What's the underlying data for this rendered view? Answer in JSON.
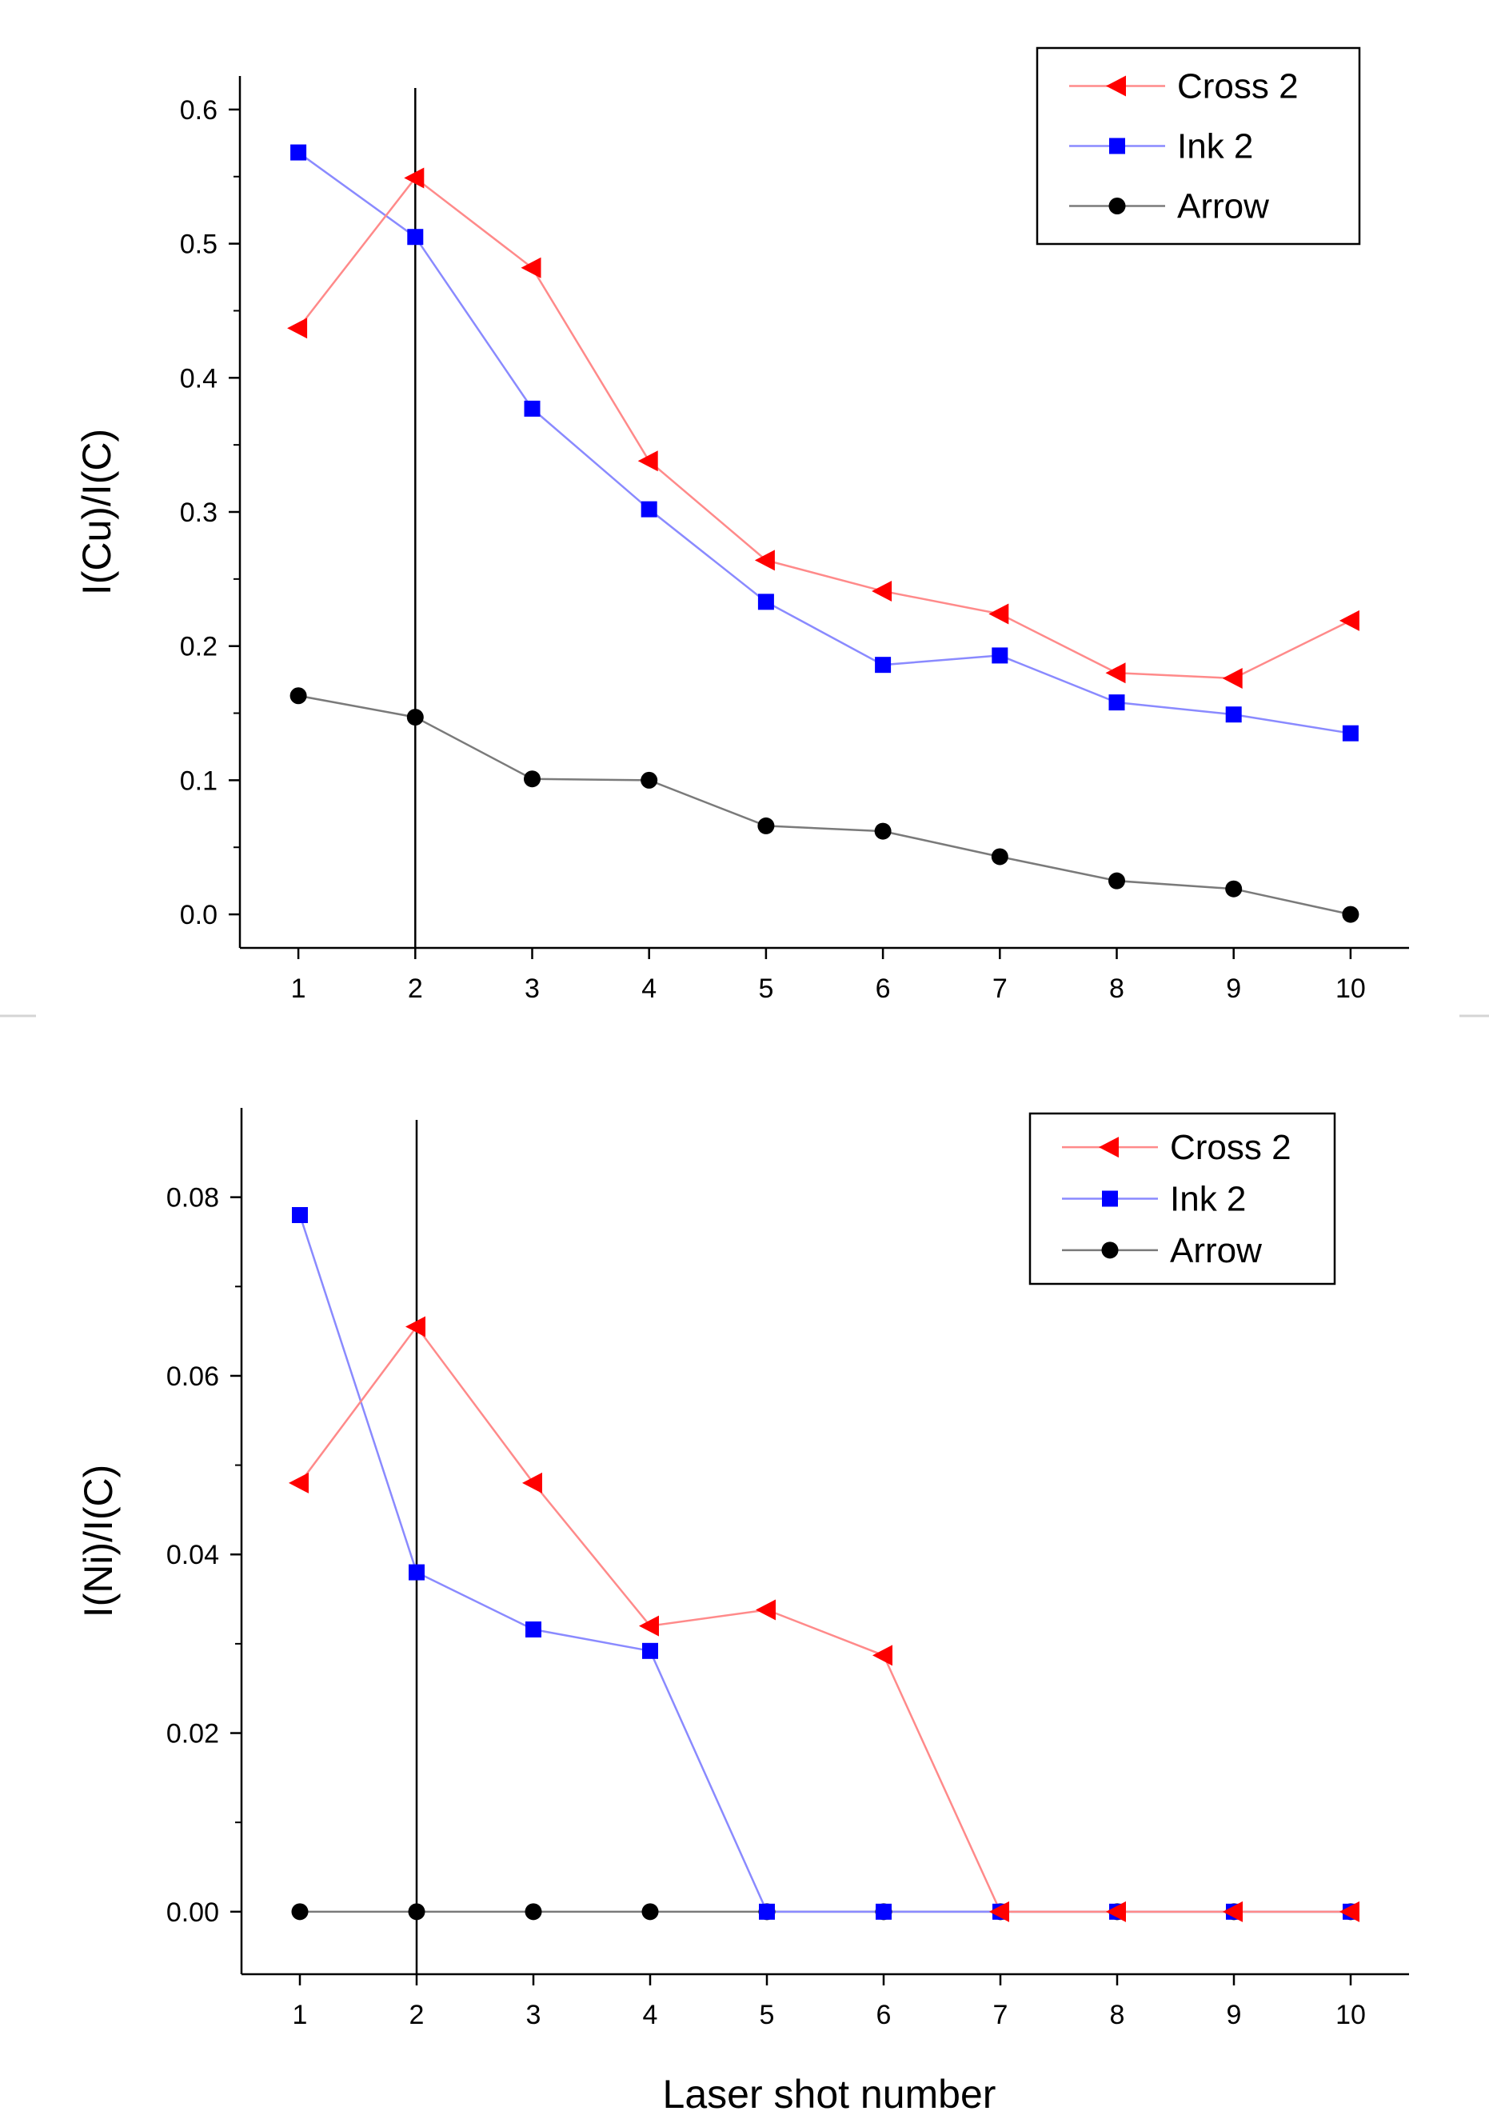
{
  "colors": {
    "cross": "#ff0000",
    "cross_line": "#ff8a8a",
    "ink": "#0000ff",
    "ink_line": "#8a8aff",
    "arrow": "#000000",
    "arrow_line": "#7a7a7a",
    "axis": "#000000"
  },
  "chart_data": [
    {
      "type": "line",
      "ylabel": "I(Cu)/I(C)",
      "xlabel": "",
      "x": [
        1,
        2,
        3,
        4,
        5,
        6,
        7,
        8,
        9,
        10
      ],
      "x_tick_labels": [
        "1",
        "2",
        "3",
        "4",
        "5",
        "6",
        "7",
        "8",
        "9",
        "10"
      ],
      "y_ticks": [
        0.0,
        0.1,
        0.2,
        0.3,
        0.4,
        0.5,
        0.6
      ],
      "y_tick_labels": [
        "0.0",
        "0.1",
        "0.2",
        "0.3",
        "0.4",
        "0.5",
        "0.6"
      ],
      "xlim": [
        0.5,
        10.5
      ],
      "ylim": [
        -0.025,
        0.625
      ],
      "vertical_line_at_x": 2,
      "legend_position": "top-right",
      "series": [
        {
          "name": "Cross 2",
          "marker": "triangle-left",
          "values": [
            0.437,
            0.549,
            0.482,
            0.338,
            0.264,
            0.241,
            0.224,
            0.18,
            0.176,
            0.219
          ]
        },
        {
          "name": "Ink 2",
          "marker": "square",
          "values": [
            0.568,
            0.505,
            0.377,
            0.302,
            0.233,
            0.186,
            0.193,
            0.158,
            0.149,
            0.135
          ]
        },
        {
          "name": "Arrow",
          "marker": "circle",
          "values": [
            0.163,
            0.147,
            0.101,
            0.1,
            0.066,
            0.062,
            0.043,
            0.025,
            0.019,
            0.0
          ]
        }
      ]
    },
    {
      "type": "line",
      "ylabel": "I(Ni)/I(C)",
      "xlabel": "Laser shot number",
      "x": [
        1,
        2,
        3,
        4,
        5,
        6,
        7,
        8,
        9,
        10
      ],
      "x_tick_labels": [
        "1",
        "2",
        "3",
        "4",
        "5",
        "6",
        "7",
        "8",
        "9",
        "10"
      ],
      "y_ticks": [
        0.0,
        0.02,
        0.04,
        0.06,
        0.08
      ],
      "y_tick_labels": [
        "0.00",
        "0.02",
        "0.04",
        "0.06",
        "0.08"
      ],
      "xlim": [
        0.5,
        10.5
      ],
      "ylim": [
        -0.007,
        0.09
      ],
      "vertical_line_at_x": 2,
      "legend_position": "top-right",
      "series": [
        {
          "name": "Cross 2",
          "marker": "triangle-left",
          "values": [
            0.048,
            0.0655,
            0.048,
            0.032,
            0.0338,
            0.0287,
            0.0,
            0.0,
            0.0,
            0.0
          ]
        },
        {
          "name": "Ink 2",
          "marker": "square",
          "values": [
            0.078,
            0.038,
            0.0316,
            0.0292,
            0.0,
            0.0,
            0.0,
            0.0,
            0.0,
            0.0
          ]
        },
        {
          "name": "Arrow",
          "marker": "circle",
          "values": [
            0.0,
            0.0,
            0.0,
            0.0,
            0.0,
            0.0,
            0.0,
            0.0,
            0.0,
            0.0
          ]
        }
      ]
    }
  ]
}
